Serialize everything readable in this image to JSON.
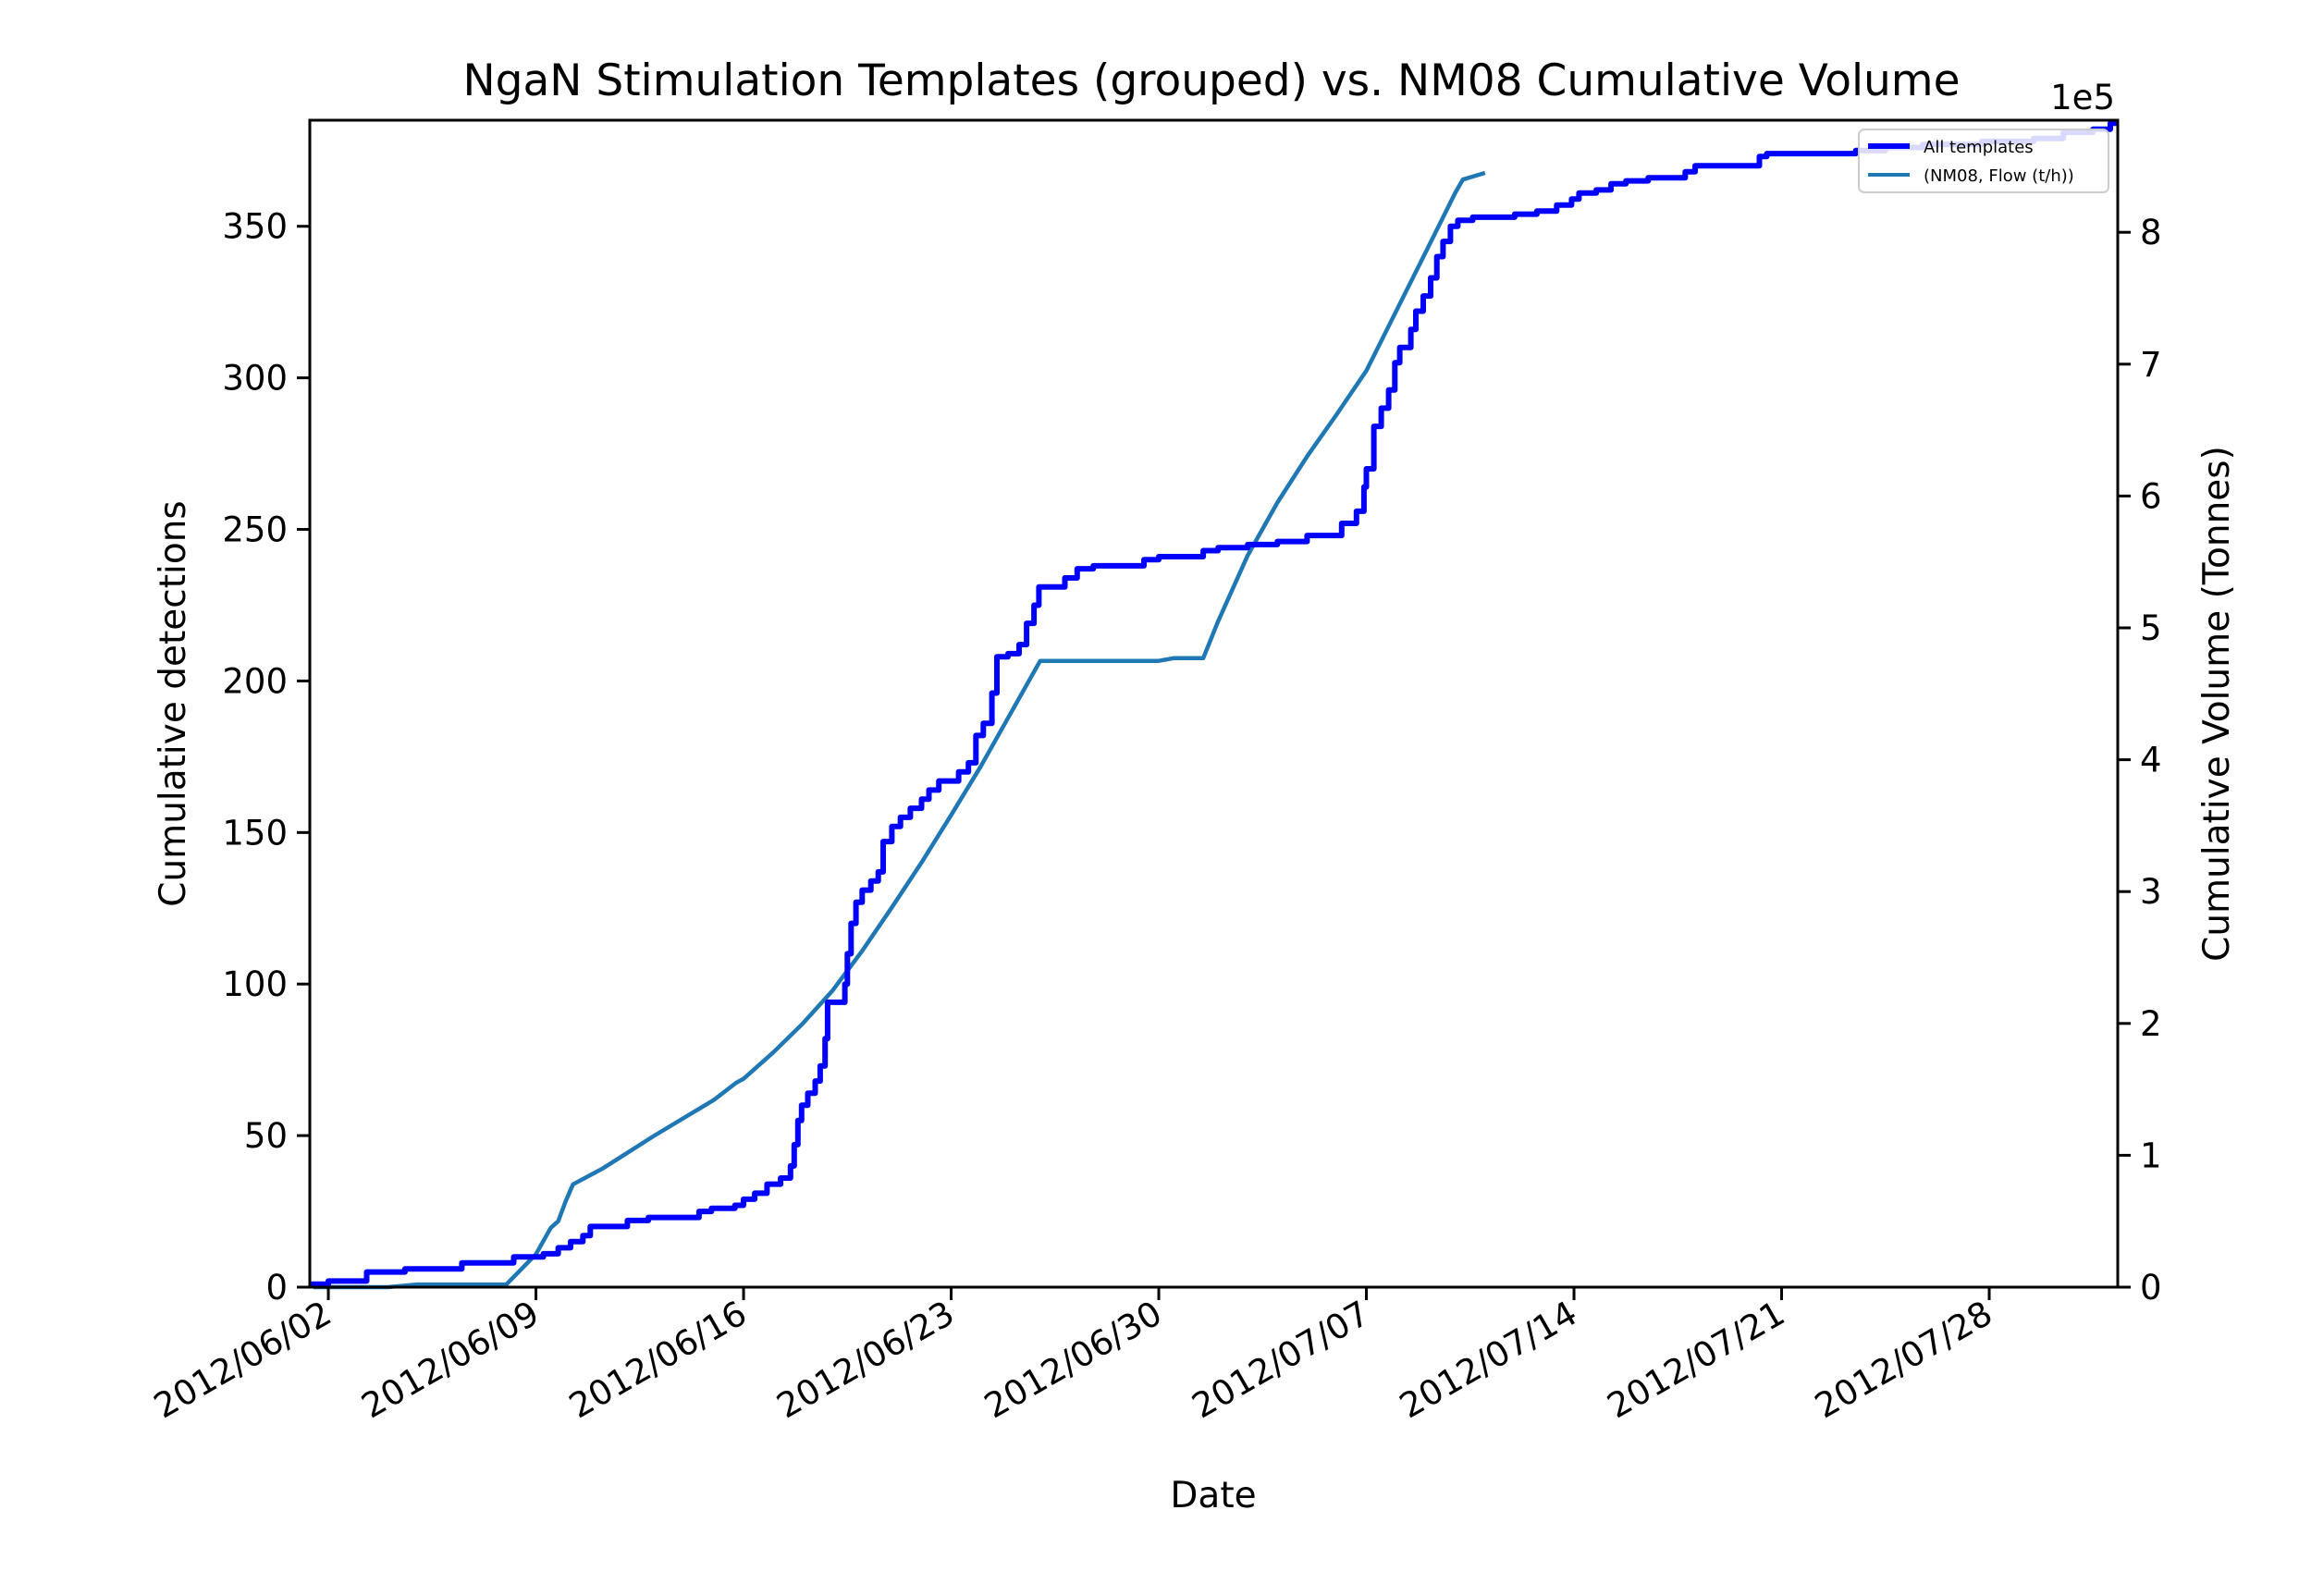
{
  "chart_data": {
    "type": "line",
    "title": "NgaN Stimulation Templates (grouped) vs. NM08 Cumulative Volume",
    "xlabel": "Date",
    "ylabel": "Cumulative detections",
    "y2label": "Cumulative Volume (Tonnes)",
    "y2_offset_text": "1e5",
    "xlim": [
      "2012-06-01T09:00",
      "2012-08-01T08:00"
    ],
    "ylim": [
      0,
      385
    ],
    "y2lim": [
      0,
      8.85
    ],
    "x_ticks": [
      "2012-06-02",
      "2012-06-09",
      "2012-06-16",
      "2012-06-23",
      "2012-06-30",
      "2012-07-07",
      "2012-07-14",
      "2012-07-21",
      "2012-07-28"
    ],
    "x_tick_labels": [
      "2012/06/02",
      "2012/06/09",
      "2012/06/16",
      "2012/06/23",
      "2012/06/30",
      "2012/07/07",
      "2012/07/14",
      "2012/07/21",
      "2012/07/28"
    ],
    "y_ticks": [
      0,
      50,
      100,
      150,
      200,
      250,
      300,
      350
    ],
    "y2_ticks": [
      0,
      1,
      2,
      3,
      4,
      5,
      6,
      7,
      8
    ],
    "legend_position": "top-right",
    "grid": false,
    "series": [
      {
        "name": "All templates",
        "axis": "left",
        "color": "#0000ff",
        "step": true,
        "points": [
          [
            "2012-06-01T09:00",
            1
          ],
          [
            "2012-06-02T00:00",
            2
          ],
          [
            "2012-06-03T07:00",
            5
          ],
          [
            "2012-06-04T14:00",
            6
          ],
          [
            "2012-06-06T12:00",
            8
          ],
          [
            "2012-06-08T06:00",
            10
          ],
          [
            "2012-06-09T06:00",
            11
          ],
          [
            "2012-06-09T18:00",
            13
          ],
          [
            "2012-06-10T04:00",
            15
          ],
          [
            "2012-06-10T14:00",
            17
          ],
          [
            "2012-06-10T20:00",
            20
          ],
          [
            "2012-06-12T02:00",
            22
          ],
          [
            "2012-06-12T19:00",
            23
          ],
          [
            "2012-06-14T12:00",
            25
          ],
          [
            "2012-06-14T22:00",
            26
          ],
          [
            "2012-06-15T17:00",
            27
          ],
          [
            "2012-06-16T00:00",
            29
          ],
          [
            "2012-06-16T09:00",
            31
          ],
          [
            "2012-06-16T19:00",
            34
          ],
          [
            "2012-06-17T06:00",
            36
          ],
          [
            "2012-06-17T14:00",
            40
          ],
          [
            "2012-06-17T17:00",
            47
          ],
          [
            "2012-06-17T20:00",
            55
          ],
          [
            "2012-06-17T23:00",
            60
          ],
          [
            "2012-06-18T04:00",
            64
          ],
          [
            "2012-06-18T10:00",
            68
          ],
          [
            "2012-06-18T14:00",
            73
          ],
          [
            "2012-06-18T18:00",
            82
          ],
          [
            "2012-06-18T20:00",
            94
          ],
          [
            "2012-06-19T10:00",
            100
          ],
          [
            "2012-06-19T12:00",
            110
          ],
          [
            "2012-06-19T15:00",
            120
          ],
          [
            "2012-06-19T19:00",
            127
          ],
          [
            "2012-06-20T00:00",
            131
          ],
          [
            "2012-06-20T07:00",
            134
          ],
          [
            "2012-06-20T13:00",
            137
          ],
          [
            "2012-06-20T17:00",
            147
          ],
          [
            "2012-06-21T00:00",
            152
          ],
          [
            "2012-06-21T07:00",
            155
          ],
          [
            "2012-06-21T15:00",
            158
          ],
          [
            "2012-06-22T00:00",
            161
          ],
          [
            "2012-06-22T06:00",
            164
          ],
          [
            "2012-06-22T14:00",
            167
          ],
          [
            "2012-06-23T06:00",
            170
          ],
          [
            "2012-06-23T14:00",
            173
          ],
          [
            "2012-06-23T20:00",
            182
          ],
          [
            "2012-06-24T02:00",
            186
          ],
          [
            "2012-06-24T09:00",
            196
          ],
          [
            "2012-06-24T13:00",
            208
          ],
          [
            "2012-06-24T22:00",
            209
          ],
          [
            "2012-06-25T07:00",
            212
          ],
          [
            "2012-06-25T13:00",
            219
          ],
          [
            "2012-06-25T19:00",
            225
          ],
          [
            "2012-06-25T23:00",
            231
          ],
          [
            "2012-06-26T20:00",
            234
          ],
          [
            "2012-06-27T06:00",
            237
          ],
          [
            "2012-06-27T19:00",
            238
          ],
          [
            "2012-06-29T12:00",
            240
          ],
          [
            "2012-06-30T00:00",
            241
          ],
          [
            "2012-07-01T12:00",
            243
          ],
          [
            "2012-07-02T00:00",
            244
          ],
          [
            "2012-07-03T00:00",
            245
          ],
          [
            "2012-07-04T00:00",
            246
          ],
          [
            "2012-07-05T00:00",
            248
          ],
          [
            "2012-07-06T04:00",
            252
          ],
          [
            "2012-07-06T16:00",
            256
          ],
          [
            "2012-07-06T22:00",
            264
          ],
          [
            "2012-07-07T00:00",
            270
          ],
          [
            "2012-07-07T06:00",
            284
          ],
          [
            "2012-07-07T12:00",
            290
          ],
          [
            "2012-07-07T18:00",
            296
          ],
          [
            "2012-07-07T23:00",
            305
          ],
          [
            "2012-07-08T03:00",
            310
          ],
          [
            "2012-07-08T12:00",
            316
          ],
          [
            "2012-07-08T16:00",
            322
          ],
          [
            "2012-07-08T22:00",
            327
          ],
          [
            "2012-07-09T04:00",
            333
          ],
          [
            "2012-07-09T09:00",
            340
          ],
          [
            "2012-07-09T14:00",
            345
          ],
          [
            "2012-07-09T20:00",
            350
          ],
          [
            "2012-07-10T02:00",
            352
          ],
          [
            "2012-07-10T14:00",
            353
          ],
          [
            "2012-07-12T00:00",
            354
          ],
          [
            "2012-07-12T18:00",
            355
          ],
          [
            "2012-07-13T10:00",
            357
          ],
          [
            "2012-07-13T22:00",
            359
          ],
          [
            "2012-07-14T04:00",
            361
          ],
          [
            "2012-07-14T18:00",
            362
          ],
          [
            "2012-07-15T06:00",
            364
          ],
          [
            "2012-07-15T18:00",
            365
          ],
          [
            "2012-07-16T12:00",
            366
          ],
          [
            "2012-07-17T18:00",
            368
          ],
          [
            "2012-07-18T02:00",
            370
          ],
          [
            "2012-07-20T06:00",
            373
          ],
          [
            "2012-07-20T12:00",
            374
          ],
          [
            "2012-07-23T12:00",
            375
          ],
          [
            "2012-07-24T12:00",
            376
          ],
          [
            "2012-07-25T18:00",
            377
          ],
          [
            "2012-07-27T18:00",
            378
          ],
          [
            "2012-07-29T12:00",
            379
          ],
          [
            "2012-07-30T12:00",
            381
          ],
          [
            "2012-07-31T12:00",
            382
          ],
          [
            "2012-08-01T02:00",
            384
          ],
          [
            "2012-08-01T08:00",
            384
          ]
        ]
      },
      {
        "name": "(NM08, Flow (t/h))",
        "axis": "right",
        "color": "#1f77b4",
        "step": false,
        "points": [
          [
            "2012-06-01T12:00",
            0
          ],
          [
            "2012-06-04T00:00",
            0.0
          ],
          [
            "2012-06-05T00:00",
            0.02
          ],
          [
            "2012-06-08T00:00",
            0.02
          ],
          [
            "2012-06-09T00:00",
            0.25
          ],
          [
            "2012-06-09T12:00",
            0.45
          ],
          [
            "2012-06-09T18:00",
            0.5
          ],
          [
            "2012-06-10T00:00",
            0.65
          ],
          [
            "2012-06-10T06:00",
            0.78
          ],
          [
            "2012-06-11T06:00",
            0.9
          ],
          [
            "2012-06-13T00:00",
            1.15
          ],
          [
            "2012-06-15T00:00",
            1.42
          ],
          [
            "2012-06-15T18:00",
            1.55
          ],
          [
            "2012-06-16T00:00",
            1.58
          ],
          [
            "2012-06-17T00:00",
            1.78
          ],
          [
            "2012-06-18T00:00",
            2.0
          ],
          [
            "2012-06-19T00:00",
            2.25
          ],
          [
            "2012-06-20T00:00",
            2.55
          ],
          [
            "2012-06-21T00:00",
            2.88
          ],
          [
            "2012-06-22T00:00",
            3.22
          ],
          [
            "2012-06-23T00:00",
            3.58
          ],
          [
            "2012-06-24T00:00",
            3.95
          ],
          [
            "2012-06-25T00:00",
            4.35
          ],
          [
            "2012-06-26T00:00",
            4.75
          ],
          [
            "2012-06-26T12:00",
            4.75
          ],
          [
            "2012-06-28T00:00",
            4.75
          ],
          [
            "2012-06-30T00:00",
            4.75
          ],
          [
            "2012-06-30T12:00",
            4.77
          ],
          [
            "2012-07-01T12:00",
            4.77
          ],
          [
            "2012-07-02T00:00",
            5.05
          ],
          [
            "2012-07-03T00:00",
            5.55
          ],
          [
            "2012-07-04T00:00",
            5.95
          ],
          [
            "2012-07-05T00:00",
            6.3
          ],
          [
            "2012-07-06T00:00",
            6.62
          ],
          [
            "2012-07-07T00:00",
            6.95
          ],
          [
            "2012-07-08T00:00",
            7.4
          ],
          [
            "2012-07-09T00:00",
            7.85
          ],
          [
            "2012-07-10T00:00",
            8.3
          ],
          [
            "2012-07-10T06:00",
            8.4
          ],
          [
            "2012-07-11T00:00",
            8.45
          ]
        ]
      }
    ]
  }
}
